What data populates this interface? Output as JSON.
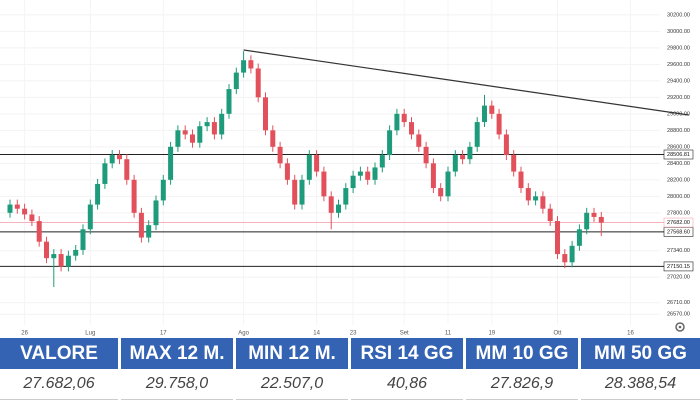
{
  "chart_data": {
    "type": "candlestick",
    "categories": [
      null,
      null,
      "26",
      null,
      null,
      null,
      null,
      null,
      null,
      null,
      null,
      "Lug",
      null,
      null,
      null,
      null,
      null,
      null,
      null,
      null,
      null,
      "17",
      null,
      null,
      null,
      null,
      null,
      null,
      null,
      null,
      null,
      null,
      "Ago",
      null,
      null,
      null,
      null,
      null,
      null,
      null,
      null,
      null,
      "14",
      null,
      null,
      null,
      null,
      "23",
      null,
      null,
      null,
      null,
      null,
      null,
      "Set",
      null,
      null,
      null,
      null,
      null,
      "11",
      null,
      null,
      null,
      null,
      null,
      "19",
      null,
      null,
      null,
      null,
      null,
      null,
      null,
      null,
      "Ott",
      null,
      null,
      null,
      null,
      null,
      null,
      null,
      null,
      null,
      "16",
      null,
      null
    ],
    "open": [
      27800,
      27900,
      27850,
      27780,
      27700,
      27450,
      27250,
      27300,
      27150,
      27280,
      27350,
      27600,
      27900,
      28150,
      28400,
      28500,
      28450,
      28200,
      27800,
      27500,
      27650,
      27950,
      28200,
      28600,
      28800,
      28750,
      28650,
      28850,
      28900,
      28750,
      29000,
      29300,
      29500,
      29650,
      29550,
      29200,
      28800,
      28600,
      28400,
      28200,
      27900,
      28200,
      28500,
      28300,
      28000,
      27800,
      27900,
      28100,
      28250,
      28300,
      28200,
      28350,
      28500,
      28800,
      29000,
      28900,
      28750,
      28600,
      28400,
      28100,
      28000,
      28300,
      28500,
      28450,
      28600,
      28900,
      29100,
      29000,
      28750,
      28500,
      28300,
      28100,
      27950,
      28000,
      27850,
      27700,
      27300,
      27200,
      27400,
      27600,
      27800,
      27750,
      null,
      null,
      null,
      null,
      null,
      null
    ],
    "high": [
      27960,
      27960,
      27910,
      27840,
      27760,
      27510,
      27360,
      27360,
      27340,
      27410,
      27660,
      27960,
      28210,
      28460,
      28560,
      28560,
      28510,
      28260,
      27860,
      27710,
      28010,
      28260,
      28660,
      28860,
      28860,
      28810,
      28910,
      28960,
      28960,
      29060,
      29360,
      29560,
      29760,
      29710,
      29610,
      29260,
      28860,
      28660,
      28460,
      28260,
      28260,
      28560,
      28560,
      28360,
      28060,
      27960,
      28160,
      28310,
      28360,
      28360,
      28410,
      28560,
      28860,
      29060,
      29060,
      28960,
      28810,
      28660,
      28460,
      28160,
      28360,
      28560,
      28560,
      28660,
      28960,
      29230,
      29160,
      29060,
      28810,
      28560,
      28360,
      28160,
      28060,
      28060,
      27910,
      27760,
      27360,
      27460,
      27660,
      27860,
      27860,
      27810,
      null,
      null,
      null,
      null,
      null,
      null
    ],
    "low": [
      27740,
      27790,
      27720,
      27640,
      27390,
      27190,
      26900,
      27090,
      27090,
      27220,
      27290,
      27540,
      27840,
      28090,
      28340,
      28390,
      28140,
      27740,
      27440,
      27440,
      27590,
      27890,
      28140,
      28540,
      28690,
      28590,
      28590,
      28790,
      28690,
      28690,
      28940,
      29240,
      29440,
      29490,
      29140,
      28740,
      28540,
      28340,
      28140,
      27840,
      27840,
      28140,
      28240,
      27940,
      27600,
      27740,
      27840,
      28040,
      28190,
      28140,
      28140,
      28290,
      28440,
      28740,
      28840,
      28690,
      28540,
      28340,
      28040,
      27940,
      27940,
      28240,
      28390,
      28390,
      28540,
      28840,
      28940,
      28690,
      28440,
      28240,
      28040,
      27890,
      27890,
      27790,
      27640,
      27240,
      27130,
      27140,
      27340,
      27540,
      27690,
      27520,
      null,
      null,
      null,
      null,
      null,
      null
    ],
    "close": [
      27900,
      27850,
      27780,
      27700,
      27450,
      27250,
      27300,
      27150,
      27280,
      27350,
      27600,
      27900,
      28150,
      28400,
      28500,
      28450,
      28200,
      27800,
      27500,
      27650,
      27950,
      28200,
      28600,
      28800,
      28750,
      28650,
      28850,
      28900,
      28750,
      29000,
      29300,
      29500,
      29650,
      29550,
      29200,
      28800,
      28600,
      28400,
      28200,
      27900,
      28200,
      28500,
      28300,
      28000,
      27800,
      27900,
      28100,
      28250,
      28300,
      28200,
      28350,
      28500,
      28800,
      29000,
      28900,
      28750,
      28600,
      28400,
      28100,
      28000,
      28300,
      28500,
      28450,
      28600,
      28900,
      29100,
      29000,
      28750,
      28500,
      28300,
      28100,
      27950,
      28000,
      27850,
      27700,
      27300,
      27200,
      27400,
      27600,
      27800,
      27750,
      27682,
      null,
      null,
      null,
      null,
      null,
      null
    ],
    "up_color": "#1e9b7b",
    "down_color": "#e2505b",
    "ylim": [
      26440,
      30380
    ],
    "yticks": [
      {
        "value": 30200,
        "label": "30200.00"
      },
      {
        "value": 30000,
        "label": "30000.00"
      },
      {
        "value": 29800,
        "label": "29800.00"
      },
      {
        "value": 29600,
        "label": "29600.00"
      },
      {
        "value": 29400,
        "label": "29400.00"
      },
      {
        "value": 29200,
        "label": "29200.00"
      },
      {
        "value": 29000,
        "label": "29000.00"
      },
      {
        "value": 28800,
        "label": "28800.00"
      },
      {
        "value": 28600,
        "label": "28600.00"
      },
      {
        "value": 28400,
        "label": "28400.00"
      },
      {
        "value": 28200,
        "label": "28200.00"
      },
      {
        "value": 28000,
        "label": "28000.00"
      },
      {
        "value": 27800,
        "label": "27800.00"
      },
      {
        "value": 27340,
        "label": "27340.00"
      },
      {
        "value": 27020,
        "label": "27020.00"
      },
      {
        "value": 26710,
        "label": "26710.00"
      },
      {
        "value": 26570,
        "label": "26570.00"
      }
    ],
    "grid": true,
    "levels": [
      {
        "value": 28506.81,
        "label": "28506.81"
      },
      {
        "value": 27568.6,
        "label": "27568.60"
      },
      {
        "value": 27150.15,
        "label": "27150.15"
      }
    ],
    "last_price": {
      "value": 27682,
      "label": "27682.00",
      "color": "#f4a7b0"
    },
    "trendline": {
      "start_index": 32,
      "start_value": 29774,
      "end_index": 93,
      "end_value": 28986
    }
  },
  "table": {
    "headers": [
      "VALORE",
      "MAX 12 M.",
      "MIN 12 M.",
      "RSI 14 GG",
      "MM 10 GG",
      "MM 50 GG"
    ],
    "values": [
      "27.682,06",
      "29.758,0",
      "22.507,0",
      "40,86",
      "27.826,9",
      "28.388,54"
    ]
  }
}
